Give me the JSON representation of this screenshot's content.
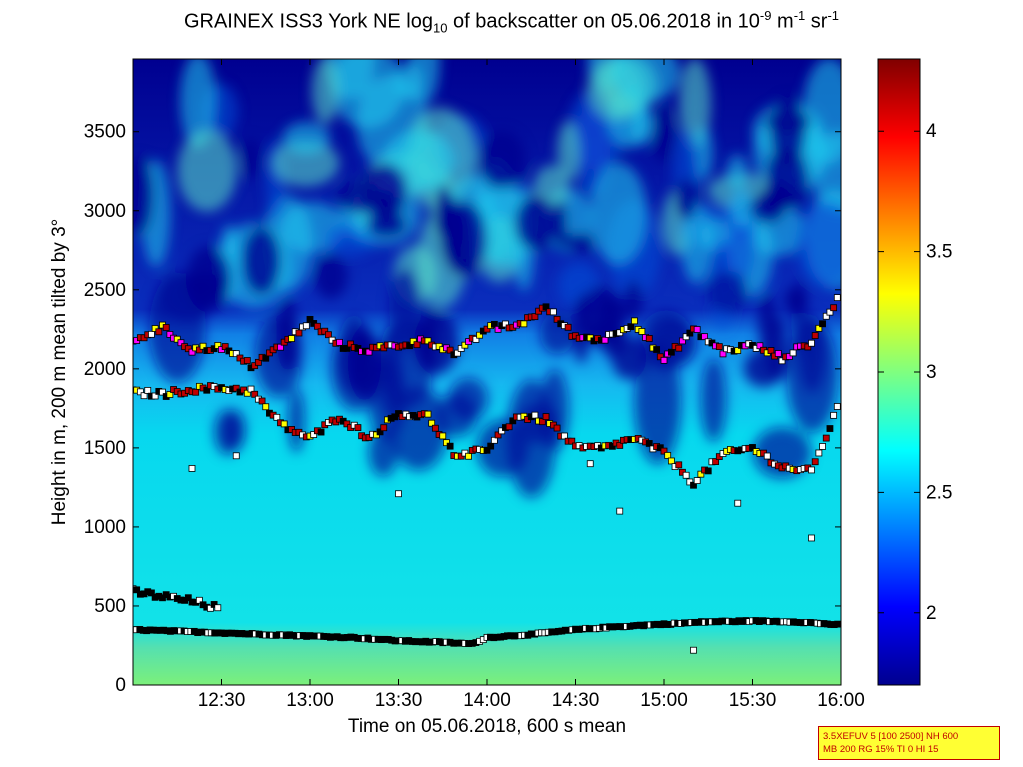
{
  "chart_data": {
    "type": "heatmap",
    "title": {
      "part1": "GRAINEX ISS3 York NE log",
      "sub": "10",
      "part2": " of backscatter on 05.06.2018 in 10",
      "sup1": "-9",
      "part3": " m",
      "sup2": "-1",
      "part4": " sr",
      "sup3": "-1"
    },
    "xlabel": "Time on 05.06.2018, 600 s mean",
    "ylabel": "Height in m, 200 m mean tilted by 3°",
    "x_ticks": [
      "12:30",
      "13:00",
      "13:30",
      "14:00",
      "14:30",
      "15:00",
      "15:30",
      "16:00"
    ],
    "x_range": [
      "12:00",
      "16:00"
    ],
    "y_ticks": [
      0,
      500,
      1000,
      1500,
      2000,
      2500,
      3000,
      3500
    ],
    "y_range": [
      0,
      3960
    ],
    "colorbar": {
      "ticks": [
        2,
        2.5,
        3,
        3.5,
        4
      ],
      "range": [
        1.7,
        4.3
      ],
      "colormap": "jet"
    },
    "field_description": {
      "near_surface_0_300m": 2.9,
      "boundary_layer_300_1800m": 2.65,
      "free_troposphere_above_2300m": 1.8
    },
    "series": [
      {
        "name": "layer_height_surface",
        "x": [
          "12:00",
          "12:15",
          "12:30",
          "12:45",
          "13:00",
          "13:15",
          "13:30",
          "13:45",
          "13:55",
          "14:00",
          "14:15",
          "14:30",
          "14:45",
          "15:00",
          "15:15",
          "15:30",
          "15:45",
          "16:00"
        ],
        "y": [
          350,
          340,
          330,
          320,
          310,
          300,
          280,
          270,
          260,
          300,
          320,
          350,
          370,
          385,
          400,
          405,
          400,
          380
        ]
      },
      {
        "name": "residual_layer",
        "x": [
          "12:00",
          "12:10",
          "12:20",
          "12:30"
        ],
        "y": [
          590,
          560,
          530,
          480
        ]
      },
      {
        "name": "boundary_layer_top",
        "x": [
          "12:00",
          "12:10",
          "12:20",
          "12:30",
          "12:40",
          "12:50",
          "13:00",
          "13:10",
          "13:20",
          "13:30",
          "13:40",
          "13:50",
          "14:00",
          "14:10",
          "14:20",
          "14:30",
          "14:40",
          "14:50",
          "15:00",
          "15:10",
          "15:20",
          "15:30",
          "15:40",
          "15:50",
          "16:00"
        ],
        "y": [
          1850,
          1840,
          1870,
          1880,
          1860,
          1650,
          1560,
          1700,
          1560,
          1720,
          1700,
          1430,
          1500,
          1700,
          1680,
          1500,
          1500,
          1560,
          1470,
          1280,
          1460,
          1500,
          1380,
          1350,
          1800
        ]
      },
      {
        "name": "upper_layer",
        "x": [
          "12:00",
          "12:10",
          "12:20",
          "12:30",
          "12:40",
          "12:50",
          "13:00",
          "13:10",
          "13:20",
          "13:30",
          "13:40",
          "13:50",
          "14:00",
          "14:10",
          "14:20",
          "14:30",
          "14:40",
          "14:50",
          "15:00",
          "15:10",
          "15:20",
          "15:30",
          "15:40",
          "15:50",
          "16:00"
        ],
        "y": [
          2180,
          2260,
          2120,
          2140,
          2020,
          2140,
          2300,
          2150,
          2120,
          2150,
          2180,
          2090,
          2260,
          2270,
          2390,
          2200,
          2190,
          2300,
          2050,
          2250,
          2110,
          2150,
          2070,
          2170,
          2480
        ]
      }
    ],
    "scattered_markers": [
      {
        "x": "12:20",
        "y": 1370
      },
      {
        "x": "12:35",
        "y": 1450
      },
      {
        "x": "13:30",
        "y": 1210
      },
      {
        "x": "14:35",
        "y": 1400
      },
      {
        "x": "14:45",
        "y": 1100
      },
      {
        "x": "15:10",
        "y": 220
      },
      {
        "x": "15:25",
        "y": 1150
      },
      {
        "x": "15:50",
        "y": 930
      }
    ]
  },
  "info_box": {
    "line1": "3.5XEFUV 5 [100 2500] NH 600",
    "line2": "MB 200 RG 15% TI 0 HI 15"
  },
  "colors": {
    "background": "#ffffff",
    "axis": "#000000",
    "info_box_bg": "#ffff33",
    "info_box_text": "#c00000"
  }
}
